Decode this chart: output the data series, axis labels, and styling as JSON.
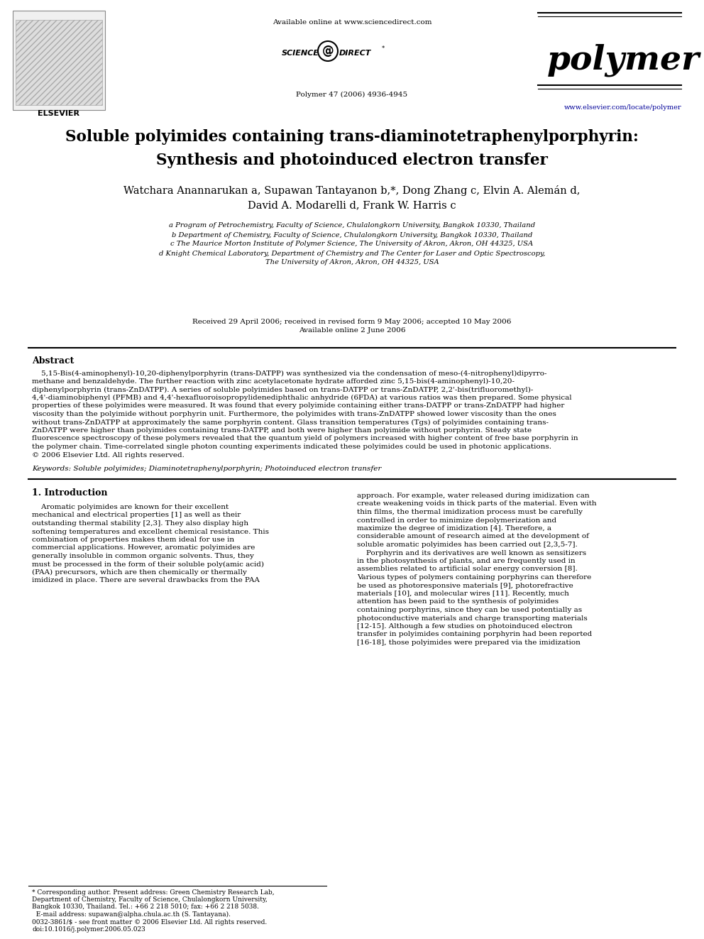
{
  "bg_color": "#ffffff",
  "available_online": "Available online at www.sciencedirect.com",
  "sciencedirect_text": "SCIENCE @ DIRECT",
  "journal_name": "polymer",
  "journal_info": "Polymer 47 (2006) 4936-4945",
  "journal_url": "www.elsevier.com/locate/polymer",
  "elsevier": "ELSEVIER",
  "title_pre": "Soluble polyimides containing ",
  "title_italic": "trans",
  "title_post": "-diaminotetraphenylporphyrin:",
  "title_line2": "Synthesis and photoinduced electron transfer",
  "author_line1": "Watchara Anannarukan a, Supawan Tantayanon b,*, Dong Zhang c, Elvin A. Alemán d,",
  "author_line2": "David A. Modarelli d, Frank W. Harris c",
  "affil_a": "a Program of Petrochemistry, Faculty of Science, Chulalongkorn University, Bangkok 10330, Thailand",
  "affil_b": "b Department of Chemistry, Faculty of Science, Chulalongkorn University, Bangkok 10330, Thailand",
  "affil_c": "c The Maurice Morton Institute of Polymer Science, The University of Akron, Akron, OH 44325, USA",
  "affil_d1": "d Knight Chemical Laboratory, Department of Chemistry and The Center for Laser and Optic Spectroscopy,",
  "affil_d2": "The University of Akron, Akron, OH 44325, USA",
  "received": "Received 29 April 2006; received in revised form 9 May 2006; accepted 10 May 2006",
  "available": "Available online 2 June 2006",
  "abstract_heading": "Abstract",
  "abstract_lines": [
    "    5,15-Bis(4-aminophenyl)-10,20-diphenylporphyrin (trans-DATPP) was synthesized via the condensation of meso-(4-nitrophenyl)dipyrro-",
    "methane and benzaldehyde. The further reaction with zinc acetylacetonate hydrate afforded zinc 5,15-bis(4-aminophenyl)-10,20-",
    "diphenylporphyrin (trans-ZnDATPP). A series of soluble polyimides based on trans-DATPP or trans-ZnDATPP, 2,2'-bis(trifluoromethyl)-",
    "4,4'-diaminobiphenyl (PFMB) and 4,4'-hexafluoroisopropylidenediphthalic anhydride (6FDA) at various ratios was then prepared. Some physical",
    "properties of these polyimides were measured. It was found that every polyimide containing either trans-DATPP or trans-ZnDATPP had higher",
    "viscosity than the polyimide without porphyrin unit. Furthermore, the polyimides with trans-ZnDATPP showed lower viscosity than the ones",
    "without trans-ZnDATPP at approximately the same porphyrin content. Glass transition temperatures (Tgs) of polyimides containing trans-",
    "ZnDATPP were higher than polyimides containing trans-DATPP, and both were higher than polyimide without porphyrin. Steady state",
    "fluorescence spectroscopy of these polymers revealed that the quantum yield of polymers increased with higher content of free base porphyrin in",
    "the polymer chain. Time-correlated single photon counting experiments indicated these polyimides could be used in photonic applications.",
    "© 2006 Elsevier Ltd. All rights reserved."
  ],
  "keywords": "Keywords: Soluble polyimides; Diaminotetraphenylporphyrin; Photoinduced electron transfer",
  "intro_heading": "1. Introduction",
  "intro_col1_lines": [
    "    Aromatic polyimides are known for their excellent",
    "mechanical and electrical properties [1] as well as their",
    "outstanding thermal stability [2,3]. They also display high",
    "softening temperatures and excellent chemical resistance. This",
    "combination of properties makes them ideal for use in",
    "commercial applications. However, aromatic polyimides are",
    "generally insoluble in common organic solvents. Thus, they",
    "must be processed in the form of their soluble poly(amic acid)",
    "(PAA) precursors, which are then chemically or thermally",
    "imidized in place. There are several drawbacks from the PAA"
  ],
  "intro_col2_lines": [
    "approach. For example, water released during imidization can",
    "create weakening voids in thick parts of the material. Even with",
    "thin films, the thermal imidization process must be carefully",
    "controlled in order to minimize depolymerization and",
    "maximize the degree of imidization [4]. Therefore, a",
    "considerable amount of research aimed at the development of",
    "soluble aromatic polyimides has been carried out [2,3,5-7].",
    "    Porphyrin and its derivatives are well known as sensitizers",
    "in the photosynthesis of plants, and are frequently used in",
    "assemblies related to artificial solar energy conversion [8].",
    "Various types of polymers containing porphyrins can therefore",
    "be used as photoresponsive materials [9], photorefractive",
    "materials [10], and molecular wires [11]. Recently, much",
    "attention has been paid to the synthesis of polyimides",
    "containing porphyrins, since they can be used potentially as",
    "photoconductive materials and charge transporting materials",
    "[12-15]. Although a few studies on photoinduced electron",
    "transfer in polyimides containing porphyrin had been reported",
    "[16-18], those polyimides were prepared via the imidization"
  ],
  "footnote_lines": [
    "* Corresponding author. Present address: Green Chemistry Research Lab,",
    "Department of Chemistry, Faculty of Science, Chulalongkorn University,",
    "Bangkok 10330, Thailand. Tel.: +66 2 218 5010; fax: +66 2 218 5038.",
    "  E-mail address: supawan@alpha.chula.ac.th (S. Tantayana)."
  ],
  "bottom_note_lines": [
    "0032-3861/$ - see front matter © 2006 Elsevier Ltd. All rights reserved.",
    "doi:10.1016/j.polymer.2006.05.023"
  ]
}
